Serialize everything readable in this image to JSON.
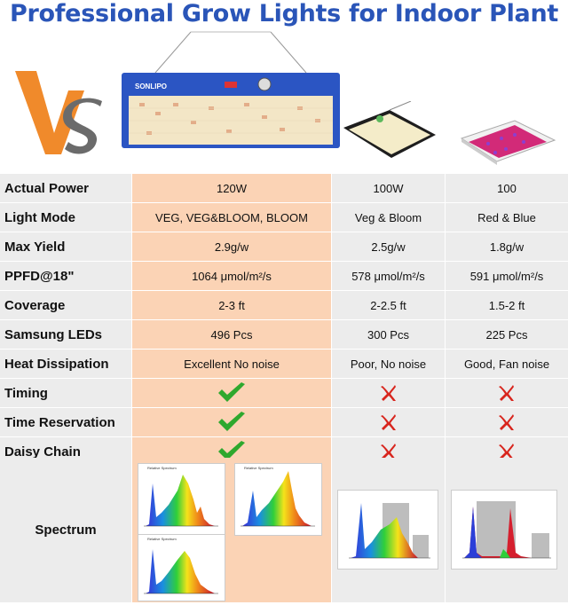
{
  "title": "Professional Grow Lights for Indoor Plant",
  "hero": {
    "brand_label": "SONLIPO",
    "vs_logo_letters": "VS"
  },
  "rows": [
    {
      "label": "Actual Power",
      "p1": "120W",
      "p2": "100W",
      "p3": "100"
    },
    {
      "label": "Light Mode",
      "p1": "VEG, VEG&BLOOM, BLOOM",
      "p2": "Veg & Bloom",
      "p3": "Red & Blue"
    },
    {
      "label": "Max Yield",
      "p1": "2.9g/w",
      "p2": "2.5g/w",
      "p3": "1.8g/w"
    },
    {
      "label": "PPFD@18\"",
      "p1": "1064 μmol/m²/s",
      "p2": "578 μmol/m²/s",
      "p3": "591 μmol/m²/s"
    },
    {
      "label": "Coverage",
      "p1": "2-3 ft",
      "p2": "2-2.5 ft",
      "p3": "1.5-2 ft"
    },
    {
      "label": "Samsung LEDs",
      "p1": "496 Pcs",
      "p2": "300 Pcs",
      "p3": "225 Pcs"
    },
    {
      "label": "Heat Dissipation",
      "p1": "Excellent  No noise",
      "p2": "Poor, No noise",
      "p3": "Good, Fan noise"
    }
  ],
  "feature_rows": [
    {
      "label": "Timing",
      "p1": "check",
      "p2": "cross",
      "p3": "cross"
    },
    {
      "label": "Time Reservation",
      "p1": "check",
      "p2": "cross",
      "p3": "cross"
    },
    {
      "label": "Daisy Chain",
      "p1": "check",
      "p2": "cross",
      "p3": "cross"
    }
  ],
  "spectrum": {
    "label": "Spectrum",
    "thumb_title_1": "Relative Spectrum",
    "thumb_title_2": "Relative Spectrum",
    "thumb_title_3": "Relative Spectrum"
  },
  "colors": {
    "title": "#2a55b8",
    "highlight_column": "#fbd3b5",
    "other_columns": "#ececec",
    "check": "#2ea82e",
    "cross": "#d8251d",
    "vs_orange": "#f08a2b",
    "vs_gray": "#6b6b6b"
  }
}
